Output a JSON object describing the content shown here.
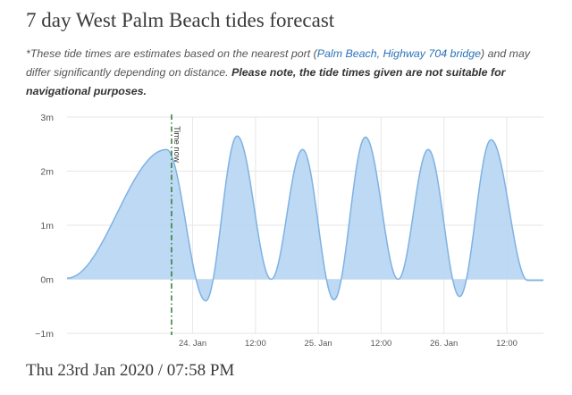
{
  "page": {
    "title": "7 day West Palm Beach tides forecast",
    "disclaimer": {
      "part1": "*These tide times are estimates based on the nearest port (",
      "port_link": "Palm Beach, Highway 704 bridge",
      "part2": ") and may differ significantly depending on distance. ",
      "warning": "Please note, the tide times given are not suitable for navigational purposes."
    },
    "current_datetime": "Thu 23rd Jan 2020 / 07:58 PM"
  },
  "colors": {
    "area_fill": "#b9d7f2",
    "area_stroke": "#7fb2e3",
    "now_line": "#2e7d32",
    "grid": "#e6e6e6",
    "axis_text": "#555555"
  },
  "chart_data": {
    "type": "area",
    "title": "",
    "xlabel": "",
    "ylabel": "",
    "y_unit": "m",
    "ylim": [
      -1,
      3
    ],
    "y_ticks": [
      -1,
      0,
      1,
      2,
      3
    ],
    "y_tick_labels": [
      "−1m",
      "0m",
      "1m",
      "2m",
      "3m"
    ],
    "x_range_hours": [
      "2020-01-23 00:00",
      "2020-01-26 19:00"
    ],
    "x_ticks": [
      {
        "time": "2020-01-24 00:00",
        "label": "24. Jan"
      },
      {
        "time": "2020-01-24 12:00",
        "label": "12:00"
      },
      {
        "time": "2020-01-25 00:00",
        "label": "25. Jan"
      },
      {
        "time": "2020-01-25 12:00",
        "label": "12:00"
      },
      {
        "time": "2020-01-26 00:00",
        "label": "26. Jan"
      },
      {
        "time": "2020-01-26 12:00",
        "label": "12:00"
      }
    ],
    "now_marker": {
      "time": "2020-01-23 19:58",
      "label": "Time now"
    },
    "grid": true,
    "legend": "none",
    "series": [
      {
        "points": [
          {
            "time": "2020-01-23 00:00",
            "height": 0.02
          },
          {
            "time": "2020-01-23 19:00",
            "height": 2.4
          },
          {
            "time": "2020-01-24 02:30",
            "height": -0.4
          },
          {
            "time": "2020-01-24 08:30",
            "height": 2.65
          },
          {
            "time": "2020-01-24 15:00",
            "height": 0.0
          },
          {
            "time": "2020-01-24 21:00",
            "height": 2.4
          },
          {
            "time": "2020-01-25 03:00",
            "height": -0.38
          },
          {
            "time": "2020-01-25 09:00",
            "height": 2.63
          },
          {
            "time": "2020-01-25 15:15",
            "height": 0.0
          },
          {
            "time": "2020-01-25 21:00",
            "height": 2.4
          },
          {
            "time": "2020-01-26 03:00",
            "height": -0.32
          },
          {
            "time": "2020-01-26 09:00",
            "height": 2.58
          },
          {
            "time": "2020-01-26 16:00",
            "height": -0.02
          },
          {
            "time": "2020-01-26 19:00",
            "height": -0.02
          }
        ]
      }
    ]
  }
}
